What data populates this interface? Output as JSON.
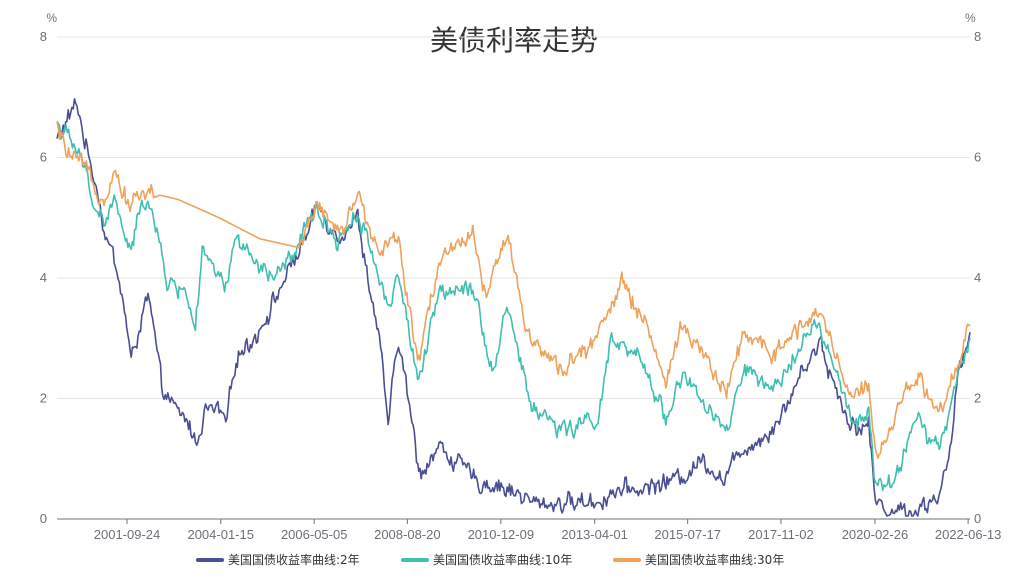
{
  "chart_data": {
    "type": "line",
    "title": "美债利率走势",
    "y_unit_left": "%",
    "y_unit_right": "%",
    "ylim": [
      0,
      8
    ],
    "y_ticks": [
      "0",
      "2",
      "4",
      "6",
      "8"
    ],
    "x_tick_labels": [
      "2001-09-24",
      "2004-01-15",
      "2006-05-05",
      "2008-08-20",
      "2010-12-09",
      "2013-04-01",
      "2015-07-17",
      "2017-11-02",
      "2020-02-26",
      "2022-06-13"
    ],
    "x_range": [
      "2000-01-03",
      "2022-06-30"
    ],
    "grid": true,
    "legend_position": "bottom",
    "series": [
      {
        "name": "美国国债收益率曲线:2年",
        "color": "#4a4e93",
        "points": [
          [
            "2000-01-03",
            6.3
          ],
          [
            "2000-04-01",
            6.6
          ],
          [
            "2000-07-01",
            6.9
          ],
          [
            "2000-10-01",
            6.1
          ],
          [
            "2001-01-01",
            5.5
          ],
          [
            "2001-03-01",
            4.8
          ],
          [
            "2001-06-01",
            4.3
          ],
          [
            "2001-09-01",
            3.5
          ],
          [
            "2001-11-01",
            2.6
          ],
          [
            "2002-01-01",
            3.1
          ],
          [
            "2002-04-01",
            3.7
          ],
          [
            "2002-06-01",
            3.0
          ],
          [
            "2002-08-01",
            2.2
          ],
          [
            "2002-12-01",
            1.8
          ],
          [
            "2003-04-01",
            1.6
          ],
          [
            "2003-06-01",
            1.25
          ],
          [
            "2003-09-01",
            1.8
          ],
          [
            "2004-01-01",
            1.8
          ],
          [
            "2004-03-01",
            1.55
          ],
          [
            "2004-06-01",
            2.7
          ],
          [
            "2004-12-01",
            3.05
          ],
          [
            "2005-06-01",
            3.7
          ],
          [
            "2005-12-01",
            4.4
          ],
          [
            "2006-03-01",
            4.7
          ],
          [
            "2006-06-01",
            5.2
          ],
          [
            "2006-12-01",
            4.7
          ],
          [
            "2007-06-01",
            5.0
          ],
          [
            "2007-09-01",
            4.0
          ],
          [
            "2007-12-01",
            3.1
          ],
          [
            "2008-03-01",
            1.6
          ],
          [
            "2008-06-01",
            3.0
          ],
          [
            "2008-10-01",
            1.6
          ],
          [
            "2008-12-01",
            0.75
          ],
          [
            "2009-06-01",
            1.2
          ],
          [
            "2009-12-01",
            0.9
          ],
          [
            "2010-06-01",
            0.6
          ],
          [
            "2010-12-01",
            0.55
          ],
          [
            "2011-06-01",
            0.4
          ],
          [
            "2011-10-01",
            0.25
          ],
          [
            "2012-06-01",
            0.27
          ],
          [
            "2013-06-01",
            0.3
          ],
          [
            "2013-09-01",
            0.45
          ],
          [
            "2014-06-01",
            0.5
          ],
          [
            "2014-12-01",
            0.6
          ],
          [
            "2015-06-01",
            0.7
          ],
          [
            "2015-12-01",
            1.0
          ],
          [
            "2016-06-01",
            0.65
          ],
          [
            "2016-12-01",
            1.2
          ],
          [
            "2017-06-01",
            1.35
          ],
          [
            "2017-12-01",
            1.8
          ],
          [
            "2018-06-01",
            2.55
          ],
          [
            "2018-11-01",
            2.95
          ],
          [
            "2019-01-01",
            2.5
          ],
          [
            "2019-06-01",
            1.8
          ],
          [
            "2019-09-01",
            1.5
          ],
          [
            "2020-01-01",
            1.55
          ],
          [
            "2020-03-01",
            0.3
          ],
          [
            "2020-06-01",
            0.18
          ],
          [
            "2021-01-01",
            0.12
          ],
          [
            "2021-06-01",
            0.22
          ],
          [
            "2021-10-01",
            0.45
          ],
          [
            "2022-01-01",
            1.0
          ],
          [
            "2022-03-01",
            2.2
          ],
          [
            "2022-05-01",
            2.7
          ],
          [
            "2022-06-30",
            3.1
          ]
        ]
      },
      {
        "name": "美国国债收益率曲线:10年",
        "color": "#3fbfb1",
        "points": [
          [
            "2000-01-03",
            6.6
          ],
          [
            "2000-03-01",
            6.4
          ],
          [
            "2000-06-01",
            6.2
          ],
          [
            "2000-09-01",
            5.85
          ],
          [
            "2000-12-01",
            5.25
          ],
          [
            "2001-03-01",
            4.9
          ],
          [
            "2001-06-01",
            5.3
          ],
          [
            "2001-09-01",
            4.7
          ],
          [
            "2001-11-01",
            4.4
          ],
          [
            "2002-01-01",
            5.0
          ],
          [
            "2002-04-01",
            5.4
          ],
          [
            "2002-07-01",
            4.6
          ],
          [
            "2002-10-01",
            3.9
          ],
          [
            "2003-03-01",
            3.8
          ],
          [
            "2003-06-01",
            3.2
          ],
          [
            "2003-08-01",
            4.4
          ],
          [
            "2004-03-01",
            3.8
          ],
          [
            "2004-06-01",
            4.7
          ],
          [
            "2004-12-01",
            4.2
          ],
          [
            "2005-06-01",
            4.0
          ],
          [
            "2005-12-01",
            4.5
          ],
          [
            "2006-06-01",
            5.15
          ],
          [
            "2006-12-01",
            4.6
          ],
          [
            "2007-06-01",
            5.1
          ],
          [
            "2007-12-01",
            4.1
          ],
          [
            "2008-03-01",
            3.5
          ],
          [
            "2008-06-01",
            4.1
          ],
          [
            "2008-12-01",
            2.2
          ],
          [
            "2009-06-01",
            3.8
          ],
          [
            "2010-04-01",
            3.9
          ],
          [
            "2010-10-01",
            2.4
          ],
          [
            "2011-02-01",
            3.6
          ],
          [
            "2011-09-01",
            1.9
          ],
          [
            "2012-07-01",
            1.45
          ],
          [
            "2013-05-01",
            1.7
          ],
          [
            "2013-09-01",
            2.95
          ],
          [
            "2014-06-01",
            2.6
          ],
          [
            "2015-01-01",
            1.7
          ],
          [
            "2015-06-01",
            2.4
          ],
          [
            "2016-07-01",
            1.4
          ],
          [
            "2016-12-01",
            2.5
          ],
          [
            "2017-09-01",
            2.05
          ],
          [
            "2018-05-01",
            3.0
          ],
          [
            "2018-10-01",
            3.2
          ],
          [
            "2019-06-01",
            2.0
          ],
          [
            "2019-09-01",
            1.5
          ],
          [
            "2020-01-01",
            1.8
          ],
          [
            "2020-03-01",
            0.55
          ],
          [
            "2020-08-01",
            0.55
          ],
          [
            "2021-03-01",
            1.7
          ],
          [
            "2021-08-01",
            1.2
          ],
          [
            "2021-12-01",
            1.5
          ],
          [
            "2022-03-01",
            2.3
          ],
          [
            "2022-06-30",
            3.0
          ]
        ]
      },
      {
        "name": "美国国债收益率曲线:30年",
        "color": "#eea25a",
        "points": [
          [
            "2000-01-03",
            6.5
          ],
          [
            "2000-03-01",
            6.2
          ],
          [
            "2000-06-01",
            5.95
          ],
          [
            "2000-09-01",
            5.85
          ],
          [
            "2000-12-01",
            5.5
          ],
          [
            "2001-03-01",
            5.35
          ],
          [
            "2001-06-01",
            5.8
          ],
          [
            "2001-09-01",
            5.4
          ],
          [
            "2001-11-01",
            5.2
          ],
          [
            "2002-01-01",
            5.4
          ],
          [
            "2002-06-01",
            5.4
          ],
          [
            "2003-01-01",
            5.3
          ],
          [
            "2004-01-01",
            5.0
          ],
          [
            "2005-01-01",
            4.65
          ],
          [
            "2006-01-01",
            4.5
          ],
          [
            "2006-06-01",
            5.25
          ],
          [
            "2006-12-01",
            4.7
          ],
          [
            "2007-06-01",
            5.3
          ],
          [
            "2007-12-01",
            4.5
          ],
          [
            "2008-06-01",
            4.6
          ],
          [
            "2008-12-01",
            2.6
          ],
          [
            "2009-06-01",
            4.3
          ],
          [
            "2010-04-01",
            4.8
          ],
          [
            "2010-08-01",
            3.7
          ],
          [
            "2011-02-01",
            4.7
          ],
          [
            "2011-09-01",
            2.9
          ],
          [
            "2012-07-01",
            2.5
          ],
          [
            "2013-05-01",
            3.0
          ],
          [
            "2013-12-01",
            3.9
          ],
          [
            "2014-06-01",
            3.4
          ],
          [
            "2015-01-01",
            2.3
          ],
          [
            "2015-06-01",
            3.2
          ],
          [
            "2016-07-01",
            2.1
          ],
          [
            "2016-12-01",
            3.1
          ],
          [
            "2017-09-01",
            2.75
          ],
          [
            "2018-05-01",
            3.2
          ],
          [
            "2018-11-01",
            3.4
          ],
          [
            "2019-08-01",
            2.0
          ],
          [
            "2020-01-01",
            2.3
          ],
          [
            "2020-03-01",
            1.0
          ],
          [
            "2020-06-01",
            1.4
          ],
          [
            "2021-03-01",
            2.4
          ],
          [
            "2021-08-01",
            1.9
          ],
          [
            "2021-12-01",
            1.9
          ],
          [
            "2022-03-01",
            2.5
          ],
          [
            "2022-06-30",
            3.2
          ]
        ]
      }
    ]
  }
}
